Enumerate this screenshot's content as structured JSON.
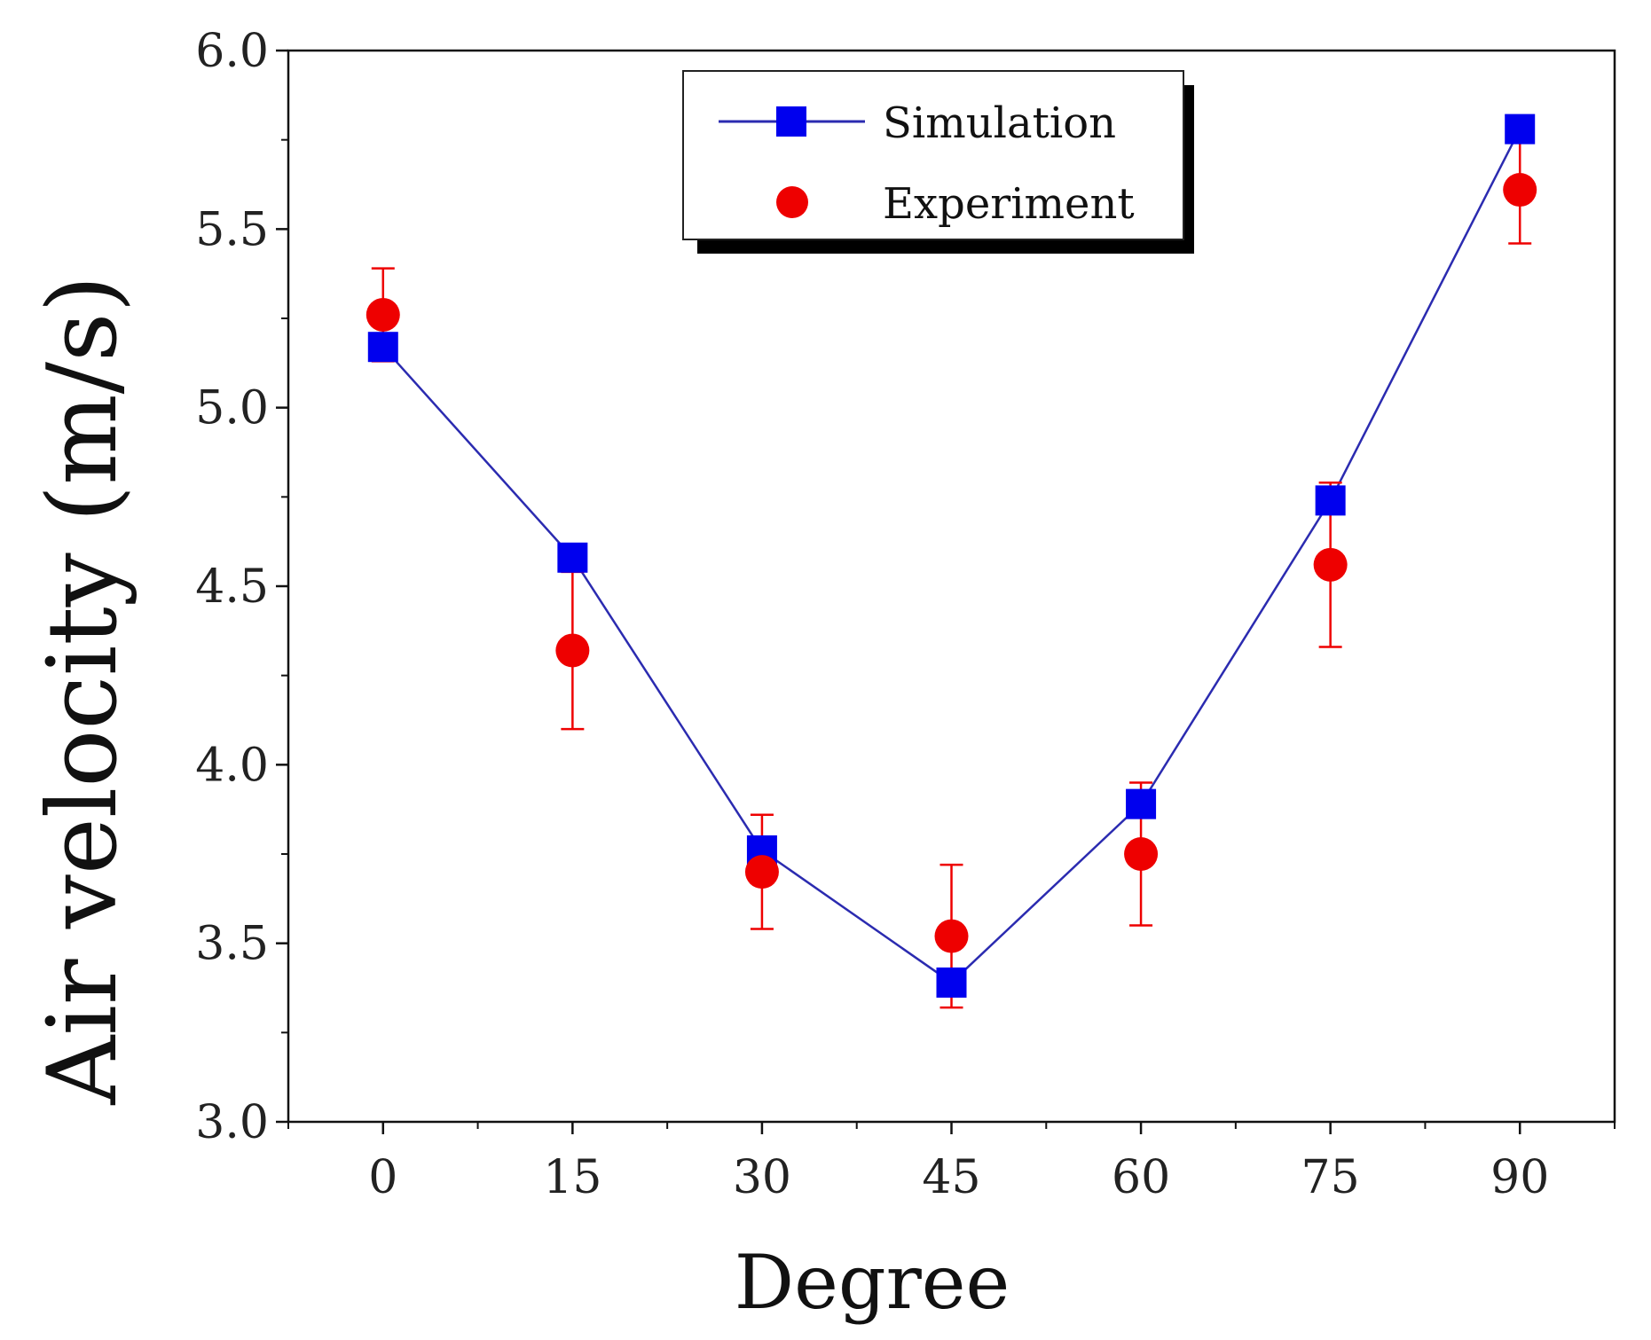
{
  "chart_data": {
    "type": "line",
    "title": "",
    "xlabel": "Degree",
    "ylabel": "Air velocity (m/s)",
    "x": [
      0,
      15,
      30,
      45,
      60,
      75,
      90
    ],
    "xlim": [
      -7.5,
      97.5
    ],
    "ylim": [
      3.0,
      6.0
    ],
    "xticks": [
      0,
      15,
      30,
      45,
      60,
      75,
      90
    ],
    "xtick_labels": [
      "0",
      "15",
      "30",
      "45",
      "60",
      "75",
      "90"
    ],
    "yticks": [
      3.0,
      3.5,
      4.0,
      4.5,
      5.0,
      5.5,
      6.0
    ],
    "ytick_labels": [
      "3.0",
      "3.5",
      "4.0",
      "4.5",
      "5.0",
      "5.5",
      "6.0"
    ],
    "grid": false,
    "legend_position": "top-center",
    "series": [
      {
        "name": "Simulation",
        "marker": "square",
        "line": true,
        "color": "#0000ee",
        "line_color": "#2b2bb0",
        "values": [
          5.17,
          4.58,
          3.76,
          3.39,
          3.89,
          4.74,
          5.78
        ]
      },
      {
        "name": "Experiment",
        "marker": "circle",
        "line": false,
        "color": "#ee0000",
        "values": [
          5.26,
          4.32,
          3.7,
          3.52,
          3.75,
          4.56,
          5.61
        ],
        "error": [
          0.13,
          0.22,
          0.16,
          0.2,
          0.2,
          0.23,
          0.15
        ]
      }
    ]
  }
}
